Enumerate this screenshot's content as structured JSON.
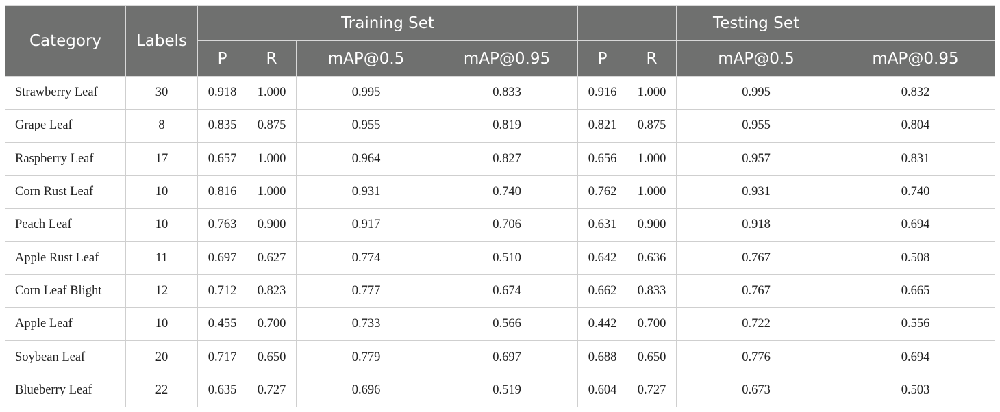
{
  "table": {
    "columns": [
      "Category",
      "Labels"
    ],
    "groups": [
      "Training Set",
      "Testing Set"
    ],
    "subheaders": [
      "P",
      "R",
      "mAP@0.5",
      "mAP@0.95",
      "P",
      "R",
      "mAP@0.5",
      "mAP@0.95"
    ],
    "rows": [
      [
        "Strawberry Leaf",
        "30",
        "0.918",
        "1.000",
        "0.995",
        "0.833",
        "0.916",
        "1.000",
        "0.995",
        "0.832"
      ],
      [
        "Grape Leaf",
        "8",
        "0.835",
        "0.875",
        "0.955",
        "0.819",
        "0.821",
        "0.875",
        "0.955",
        "0.804"
      ],
      [
        "Raspberry Leaf",
        "17",
        "0.657",
        "1.000",
        "0.964",
        "0.827",
        "0.656",
        "1.000",
        "0.957",
        "0.831"
      ],
      [
        "Corn Rust Leaf",
        "10",
        "0.816",
        "1.000",
        "0.931",
        "0.740",
        "0.762",
        "1.000",
        "0.931",
        "0.740"
      ],
      [
        "Peach Leaf",
        "10",
        "0.763",
        "0.900",
        "0.917",
        "0.706",
        "0.631",
        "0.900",
        "0.918",
        "0.694"
      ],
      [
        "Apple Rust Leaf",
        "11",
        "0.697",
        "0.627",
        "0.774",
        "0.510",
        "0.642",
        "0.636",
        "0.767",
        "0.508"
      ],
      [
        "Corn Leaf Blight",
        "12",
        "0.712",
        "0.823",
        "0.777",
        "0.674",
        "0.662",
        "0.833",
        "0.767",
        "0.665"
      ],
      [
        "Apple Leaf",
        "10",
        "0.455",
        "0.700",
        "0.733",
        "0.566",
        "0.442",
        "0.700",
        "0.722",
        "0.556"
      ],
      [
        "Soybean Leaf",
        "20",
        "0.717",
        "0.650",
        "0.779",
        "0.697",
        "0.688",
        "0.650",
        "0.776",
        "0.694"
      ],
      [
        "Blueberry Leaf",
        "22",
        "0.635",
        "0.727",
        "0.696",
        "0.519",
        "0.604",
        "0.727",
        "0.673",
        "0.503"
      ]
    ]
  }
}
